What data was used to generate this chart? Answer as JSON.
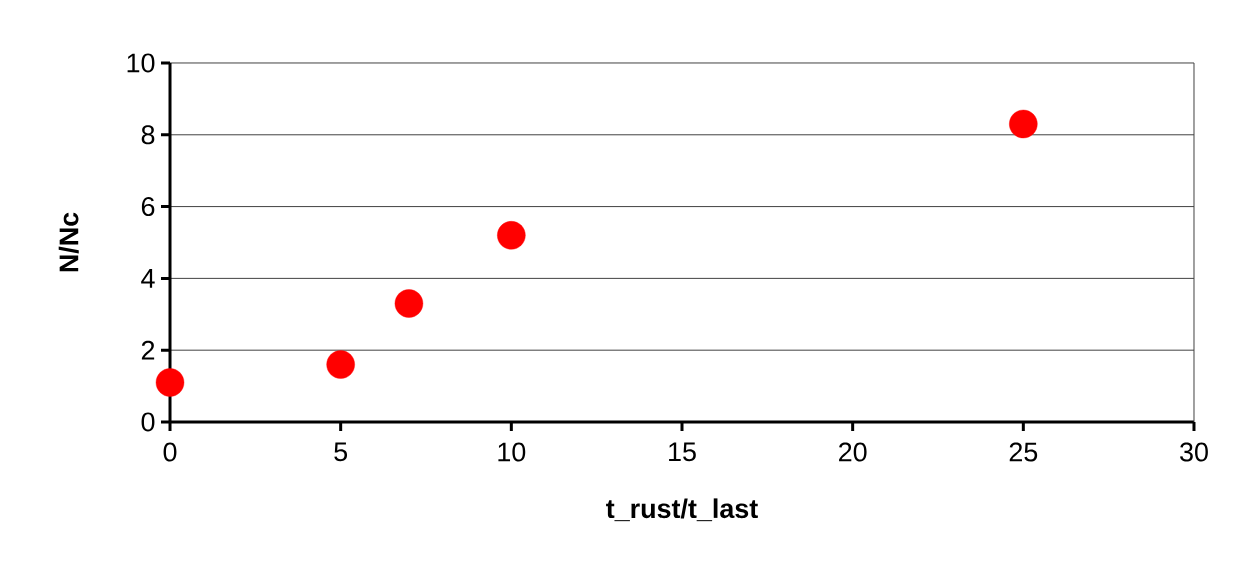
{
  "chart_data": {
    "type": "scatter",
    "xlabel": "t_rust/t_last",
    "ylabel": "N/Nc",
    "x": [
      0,
      5,
      7,
      10,
      25
    ],
    "values": [
      1.1,
      1.6,
      3.3,
      5.2,
      8.3
    ],
    "color": "#ff0000",
    "marker": "circle",
    "xlim": [
      0,
      30
    ],
    "xticks": [
      0,
      5,
      10,
      15,
      20,
      25,
      30
    ],
    "ylim": [
      0,
      10
    ],
    "yticks": [
      0,
      2,
      4,
      6,
      8,
      10
    ],
    "grid": "y"
  }
}
